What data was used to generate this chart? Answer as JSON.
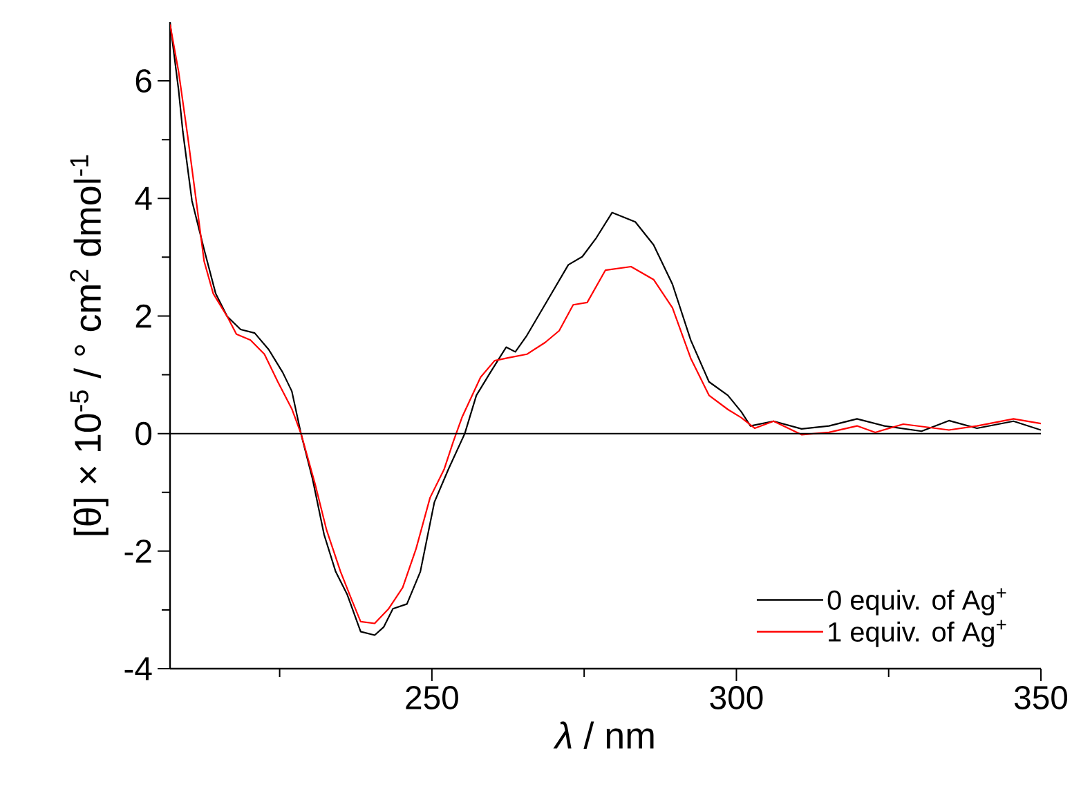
{
  "chart_data": {
    "type": "line",
    "xlabel": "*λ* / nm",
    "ylabel": "[θ] × 10$^{-5}$ / ° cm$^{2}$ dmol$^{-1}$",
    "xlim": [
      207,
      350
    ],
    "ylim": [
      -4,
      7
    ],
    "xticks": [
      {
        "value": 225,
        "label": null
      },
      250,
      {
        "value": 275,
        "label": null
      },
      300,
      {
        "value": 325,
        "label": null
      },
      350
    ],
    "yticks": [
      -4,
      {
        "value": -3,
        "label": null
      },
      -2,
      {
        "value": -1,
        "label": null
      },
      0,
      {
        "value": 1,
        "label": null
      },
      2,
      {
        "value": 3,
        "label": null
      },
      4,
      {
        "value": 5,
        "label": null
      },
      6
    ],
    "legend": "bottom right",
    "grid": false,
    "ref_lines": [
      {
        "axis": "y",
        "value": 0,
        "color": "#000000"
      }
    ],
    "series": [
      {
        "name": "0 equiv. of Ag$^{+}$",
        "color": "#000000",
        "x": [
          207,
          208.4,
          209.1,
          210.6,
          212.6,
          214.5,
          216.4,
          218.6,
          220.9,
          223.2,
          225.5,
          227.0,
          228.5,
          230.4,
          232.3,
          234.2,
          236.1,
          238.3,
          240.6,
          242.1,
          243.6,
          245.9,
          248.1,
          250.4,
          252.7,
          255.4,
          257.3,
          259.6,
          262.2,
          263.7,
          265.6,
          269.4,
          272.4,
          274.7,
          277.0,
          279.6,
          283.4,
          286.4,
          289.5,
          292.5,
          295.5,
          298.6,
          300.8,
          302.3,
          306.1,
          310.7,
          315.2,
          319.8,
          324.3,
          330.4,
          334.9,
          339.5,
          345.5,
          350.0
        ],
        "values": [
          6.99,
          5.85,
          5.14,
          3.96,
          3.13,
          2.38,
          1.99,
          1.77,
          1.71,
          1.43,
          1.04,
          0.72,
          0,
          -0.77,
          -1.72,
          -2.35,
          -2.74,
          -3.37,
          -3.43,
          -3.29,
          -2.98,
          -2.9,
          -2.35,
          -1.17,
          -0.61,
          0,
          0.65,
          1.04,
          1.47,
          1.39,
          1.67,
          2.34,
          2.87,
          3.01,
          3.33,
          3.76,
          3.6,
          3.21,
          2.54,
          1.59,
          0.88,
          0.65,
          0.37,
          0.13,
          0.21,
          0.08,
          0.13,
          0.25,
          0.13,
          0.04,
          0.22,
          0.09,
          0.21,
          0.06
        ]
      },
      {
        "name": "1 equiv. of Ag$^{+}$",
        "color": "#ff0000",
        "x": [
          207,
          208.4,
          209.9,
          211.4,
          212.6,
          214.1,
          216.4,
          217.9,
          220.2,
          222.5,
          224.7,
          227.0,
          228.5,
          230.8,
          232.7,
          235.0,
          236.8,
          238.3,
          240.6,
          242.9,
          245.2,
          247.4,
          249.7,
          252.0,
          253.5,
          255.0,
          258.0,
          260.3,
          262.6,
          265.6,
          268.6,
          270.9,
          273.2,
          275.5,
          278.5,
          282.7,
          286.4,
          289.5,
          292.5,
          295.5,
          298.6,
          300.8,
          303.0,
          306.1,
          310.7,
          315.2,
          319.8,
          322.8,
          327.4,
          334.9,
          339.5,
          345.5,
          350.0
        ],
        "values": [
          6.96,
          6.16,
          5.06,
          3.88,
          2.93,
          2.38,
          1.99,
          1.69,
          1.59,
          1.35,
          0.88,
          0.42,
          0,
          -0.85,
          -1.64,
          -2.35,
          -2.82,
          -3.2,
          -3.23,
          -2.98,
          -2.62,
          -1.96,
          -1.09,
          -0.61,
          -0.14,
          0.29,
          0.96,
          1.24,
          1.29,
          1.35,
          1.55,
          1.75,
          2.19,
          2.23,
          2.78,
          2.84,
          2.62,
          2.14,
          1.28,
          0.65,
          0.41,
          0.27,
          0.09,
          0.21,
          -0.02,
          0.02,
          0.13,
          0.02,
          0.16,
          0.06,
          0.13,
          0.25,
          0.17
        ]
      }
    ]
  }
}
